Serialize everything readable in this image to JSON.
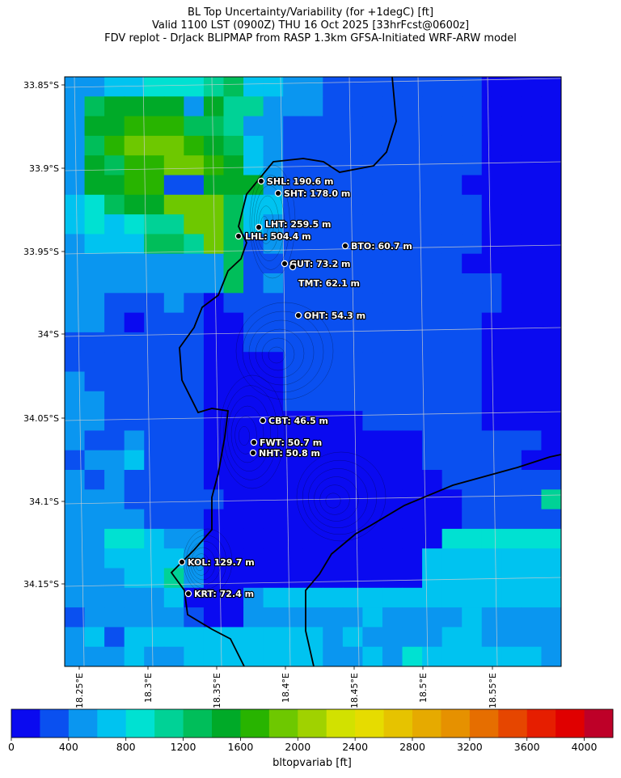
{
  "title": {
    "line1": "BL Top Uncertainty/Variability (for +1degC) [ft]",
    "line2": "Valid 1100 LST (0900Z) THU 16 Oct 2025 [33hrFcst@0600z]",
    "line3": "FDV replot - DrJack BLIPMAP from RASP 1.3km GFSA-Initiated WRF-ARW model"
  },
  "map": {
    "lat_labels": [
      "33.85°S",
      "33.9°S",
      "33.95°S",
      "34°S",
      "34.05°S",
      "34.1°S",
      "34.15°S"
    ],
    "lon_labels": [
      "18.25°E",
      "18.3°E",
      "18.35°E",
      "18.4°E",
      "18.45°E",
      "18.5°E",
      "18.55°E"
    ],
    "stations": [
      {
        "code": "SHL",
        "text": "SHL: 190.6 m"
      },
      {
        "code": "SHT",
        "text": "SHT: 178.0 m"
      },
      {
        "code": "LHT",
        "text": "LHT: 259.5 m"
      },
      {
        "code": "LHL",
        "text": "LHL: 504.4 m"
      },
      {
        "code": "BTO",
        "text": "BTO: 60.7 m"
      },
      {
        "code": "GUT",
        "text": "GUT: 73.2 m"
      },
      {
        "code": "TMT",
        "text": "TMT: 62.1 m"
      },
      {
        "code": "OHT",
        "text": "OHT: 54.3 m"
      },
      {
        "code": "CBT",
        "text": "CBT: 46.5 m"
      },
      {
        "code": "FWT",
        "text": "FWT: 50.7 m"
      },
      {
        "code": "NHT",
        "text": "NHT: 50.8 m"
      },
      {
        "code": "KOL",
        "text": "KOL: 129.7 m"
      },
      {
        "code": "KRT",
        "text": "KRT: 72.4 m"
      }
    ]
  },
  "colorbar": {
    "label": "bltopvariab [ft]",
    "tick_labels": [
      "0",
      "400",
      "800",
      "1200",
      "1600",
      "2000",
      "2400",
      "2800",
      "3200",
      "3600",
      "4000"
    ],
    "colors": [
      "#0a0af0",
      "#0a50f0",
      "#0a96f0",
      "#00c3f0",
      "#00e1d2",
      "#00d296",
      "#00be5a",
      "#00aa28",
      "#28b400",
      "#6ec800",
      "#a0d200",
      "#d2e100",
      "#e6dc00",
      "#e6c300",
      "#e6aa00",
      "#e69100",
      "#e66e00",
      "#e64600",
      "#e61e00",
      "#e00000",
      "#be0028"
    ]
  },
  "chart_data": {
    "type": "heatmap",
    "title": "BL Top Uncertainty/Variability (for +1degC) [ft]",
    "colorbar_range": [
      0,
      4200
    ],
    "colorbar_step": 200,
    "lat_range": [
      -34.2,
      -33.845
    ],
    "lon_range": [
      18.24,
      18.6
    ],
    "grid_rows": 30,
    "grid_cols": 25,
    "grid_levels": [
      "2233444563322111111110000",
      "2677772755222111111110000",
      "2778886652211111111110000",
      "2689998763211111111110000",
      "2768899873211111111110000",
      "2778811777211111111100000",
      "3467799963311111111110000",
      "3434559963211111111110000",
      "2333665961211111111110000",
      "2222222261111111111100000",
      "2222222261211111111111000",
      "2211121011111111111111000",
      "2210111001111111111110000",
      "1111111001111111111110000",
      "1111111000011111111110000",
      "2111111000011111111110000",
      "2211111000011111111110000",
      "2211111000000001111110000",
      "2112111000000000001111110",
      "1223111000000000001111100",
      "2121111000000000000111111",
      "2221111100000000000011115",
      "2222111000000000000011111",
      "2244322000000000000444444",
      "2233332000000000003333333",
      "2223352000000000003333333",
      "2222230002333333333333333",
      "1222221002222223222232222",
      "2313333333333232222332222",
      "2223223333333223243333332"
    ]
  }
}
